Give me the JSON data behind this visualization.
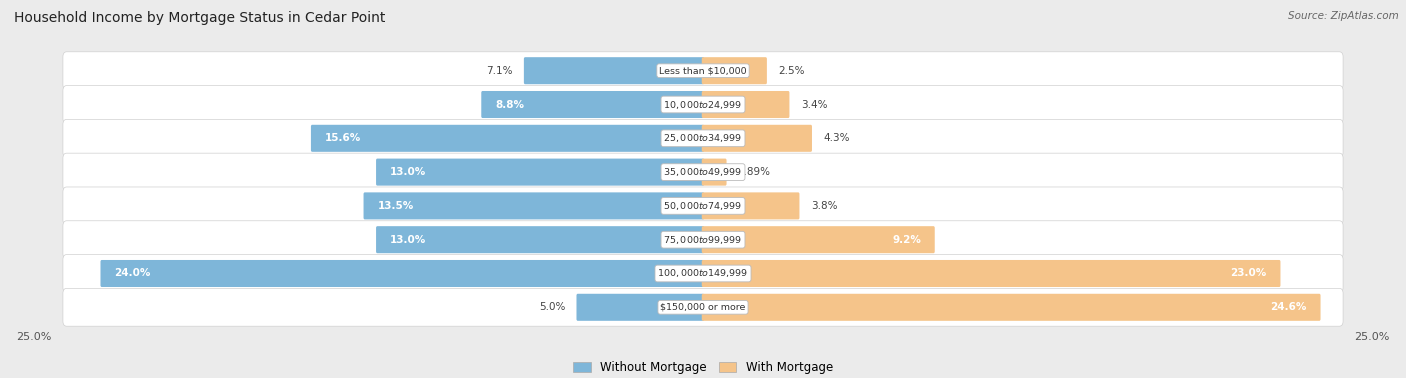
{
  "title": "Household Income by Mortgage Status in Cedar Point",
  "source": "Source: ZipAtlas.com",
  "categories": [
    "Less than $10,000",
    "$10,000 to $24,999",
    "$25,000 to $34,999",
    "$35,000 to $49,999",
    "$50,000 to $74,999",
    "$75,000 to $99,999",
    "$100,000 to $149,999",
    "$150,000 or more"
  ],
  "without_mortgage": [
    7.1,
    8.8,
    15.6,
    13.0,
    13.5,
    13.0,
    24.0,
    5.0
  ],
  "with_mortgage": [
    2.5,
    3.4,
    4.3,
    0.89,
    3.8,
    9.2,
    23.0,
    24.6
  ],
  "without_mortgage_labels": [
    "7.1%",
    "8.8%",
    "15.6%",
    "13.0%",
    "13.5%",
    "13.0%",
    "24.0%",
    "5.0%"
  ],
  "with_mortgage_labels": [
    "2.5%",
    "3.4%",
    "4.3%",
    "0.89%",
    "3.8%",
    "9.2%",
    "23.0%",
    "24.6%"
  ],
  "without_mortgage_color": "#7EB6D9",
  "with_mortgage_color": "#F5C48A",
  "background_color": "#EBEBEB",
  "row_bg_color": "#FFFFFF",
  "xlim": 25.0,
  "legend_labels": [
    "Without Mortgage",
    "With Mortgage"
  ],
  "axis_label_left": "25.0%",
  "axis_label_right": "25.0%",
  "inside_label_threshold": 8.0
}
